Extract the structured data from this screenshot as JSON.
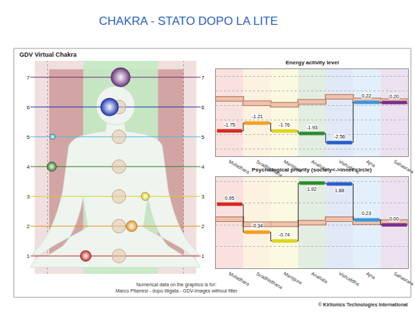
{
  "title": "CHAKRA - STATO DOPO LA LITE",
  "chart_data": [
    {
      "type": "scatter",
      "title": "GDV Virtual Chakra",
      "x": [
        -0.35,
        0.19,
        0.35,
        -0.75,
        -0.74,
        -0.07,
        0.06
      ],
      "values": [
        1,
        2,
        3,
        4,
        5,
        6,
        7
      ],
      "sizes": [
        16,
        16,
        12,
        14,
        8,
        26,
        28
      ],
      "colors": [
        "#c0201a",
        "#e69018",
        "#d8cc18",
        "#2a7a1e",
        "#4cb4e4",
        "#1830b0",
        "#6a2a7a"
      ],
      "marker": "sphere",
      "xlim": [
        -1,
        1
      ],
      "ylim": [
        0.4,
        7.55
      ],
      "yticks": [
        1,
        2,
        3,
        4,
        5,
        6,
        7
      ],
      "tick_labels": "y",
      "grid": true
    },
    {
      "type": "line",
      "title": "Energy activity level",
      "categories": [
        "Muladhara",
        "Svadhisthana",
        "Manipura",
        "Anahata",
        "Vishuddha",
        "Ajna",
        "Sahasrara"
      ],
      "series": [
        {
          "values": [
            -1.75,
            -1.21,
            -1.76,
            -1.93,
            -2.56,
            0.22,
            0.2
          ],
          "value_labels": [
            "-1.75",
            "-1.21",
            "-1.76",
            "-1.93",
            "-2.56",
            "0.22",
            "0.20"
          ],
          "colors": [
            "#d42a1e",
            "#f0a020",
            "#e0d420",
            "#2e8a2e",
            "#2a5cc8",
            "#3c96e0",
            "#7a3090"
          ],
          "marker": "dash",
          "line_style": "step",
          "data_labels": true
        },
        {
          "values": [
            0.45,
            0.15,
            0.05,
            0.25,
            0.6,
            0.35,
            0.3
          ],
          "color": "#efc3ad",
          "marker": "box",
          "line_style": "none",
          "data_labels": false
        }
      ],
      "ylim": [
        -3.5,
        2.5
      ],
      "yticks": [
        -3,
        -2,
        -1,
        0,
        1,
        2
      ],
      "grid": true,
      "tick_labels": "x"
    },
    {
      "type": "line",
      "title": "Psychological priority (society<->inner circle)",
      "categories": [
        "Muladhara",
        "Svadhisthana",
        "Manipura",
        "Anahata",
        "Vishuddha",
        "Ajna",
        "Sahasrara"
      ],
      "series": [
        {
          "values": [
            0.95,
            -0.34,
            -0.74,
            1.92,
            1.88,
            0.23,
            0.0
          ],
          "value_labels": [
            "0.95",
            "-0.34",
            "-0.74",
            "1.92",
            "1.88",
            "0.23",
            "0.00"
          ],
          "colors": [
            "#d42a1e",
            "#f0a020",
            "#e0d420",
            "#2e8a2e",
            "#2a5cc8",
            "#3c96e0",
            "#7a3090"
          ],
          "marker": "dash",
          "line_style": "step",
          "data_labels": true
        },
        {
          "values": [
            0.26,
            0.03,
            0.03,
            0.1,
            0.26,
            0.12,
            0.12
          ],
          "color": "#efc3ad",
          "marker": "box",
          "line_style": "none",
          "data_labels": false
        }
      ],
      "ylim": [
        -2,
        2.2
      ],
      "yticks": [
        -2,
        -1,
        0,
        1,
        2
      ],
      "grid": true,
      "tick_labels": "x"
    }
  ],
  "footer": [
    "Numerical data on the graphics is for:",
    "Marco Pitarresi - dopo litigata - GDV-images without filter"
  ],
  "copyright": "© Kirlionics Technologies International"
}
